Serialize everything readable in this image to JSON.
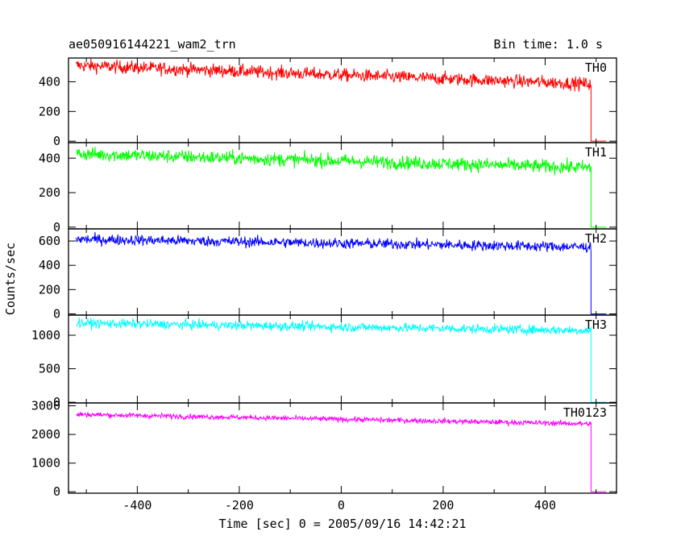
{
  "chart_data": {
    "type": "line",
    "title": "ae050916144221_wam2_trn",
    "subtitle": "Bin time: 1.0 s",
    "xlabel": "Time [sec] 0 = 2005/09/16 14:42:21",
    "ylabel": "Counts/sec",
    "xlim": [
      -535,
      540
    ],
    "x_ticks": [
      "-400",
      "-200",
      "0",
      "200",
      "400"
    ],
    "x_tick_values": [
      -400,
      -200,
      0,
      200,
      400
    ],
    "grid": false,
    "panels": [
      {
        "name": "TH0",
        "color": "#ff0000",
        "ylim": [
          -10,
          560
        ],
        "y_ticks": [
          "0",
          "200",
          "400"
        ],
        "y_tick_values": [
          0,
          200,
          400
        ],
        "x_start": -520,
        "x_drop": 490,
        "x_end": 520,
        "y_start": 510,
        "y_end": 385,
        "noise": 22,
        "y_after": 0
      },
      {
        "name": "TH1",
        "color": "#00ff00",
        "ylim": [
          -10,
          490
        ],
        "y_ticks": [
          "0",
          "200",
          "400"
        ],
        "y_tick_values": [
          0,
          200,
          400
        ],
        "x_start": -520,
        "x_drop": 490,
        "x_end": 520,
        "y_start": 425,
        "y_end": 345,
        "noise": 20,
        "y_after": 0
      },
      {
        "name": "TH2",
        "color": "#0000ff",
        "ylim": [
          -10,
          700
        ],
        "y_ticks": [
          "0",
          "200",
          "400",
          "600"
        ],
        "y_tick_values": [
          0,
          200,
          400,
          600
        ],
        "x_start": -520,
        "x_drop": 490,
        "x_end": 520,
        "y_start": 615,
        "y_end": 550,
        "noise": 22,
        "y_after": 0
      },
      {
        "name": "TH3",
        "color": "#00ffff",
        "ylim": [
          -10,
          1300
        ],
        "y_ticks": [
          "0",
          "500",
          "1000"
        ],
        "y_tick_values": [
          0,
          500,
          1000
        ],
        "x_start": -520,
        "x_drop": 490,
        "x_end": 520,
        "y_start": 1180,
        "y_end": 1070,
        "noise": 35,
        "y_after": 0
      },
      {
        "name": "TH0123",
        "color": "#ff00ff",
        "ylim": [
          -50,
          3100
        ],
        "y_ticks": [
          "0",
          "1000",
          "2000",
          "3000"
        ],
        "y_tick_values": [
          0,
          1000,
          2000,
          3000
        ],
        "x_start": -520,
        "x_drop": 490,
        "x_end": 520,
        "y_start": 2700,
        "y_end": 2370,
        "noise": 45,
        "y_after": 0
      }
    ]
  }
}
